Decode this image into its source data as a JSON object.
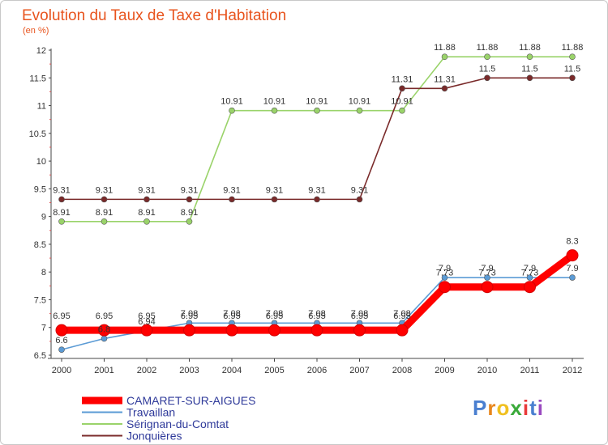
{
  "chart_data": {
    "type": "line",
    "title": "Evolution du Taux de Taxe d'Habitation",
    "subtitle": "(en %)",
    "x": [
      "2000",
      "2001",
      "2002",
      "2003",
      "2004",
      "2005",
      "2006",
      "2007",
      "2008",
      "2009",
      "2010",
      "2011",
      "2012"
    ],
    "ylim": [
      6.5,
      12
    ],
    "yticks": [
      "6.5",
      "7",
      "7.5",
      "8",
      "8.5",
      "9",
      "9.5",
      "10",
      "10.5",
      "11",
      "11.5",
      "12"
    ],
    "grid": false,
    "legend_position": "bottom-left",
    "series": [
      {
        "name": "CAMARET-SUR-AIGUES",
        "color": "#ff0000",
        "values": [
          6.95,
          6.95,
          6.95,
          6.95,
          6.95,
          6.95,
          6.95,
          6.95,
          6.95,
          7.73,
          7.73,
          7.73,
          8.3
        ],
        "labels": [
          "6.95",
          "6.95",
          "6.95",
          "6.95",
          "6.95",
          "6.95",
          "6.95",
          "6.95",
          "6.95",
          "7.73",
          "7.73",
          "7.73",
          "8.3"
        ]
      },
      {
        "name": "Travaillan",
        "color": "#5b9bd5",
        "values": [
          6.6,
          6.8,
          6.94,
          7.08,
          7.08,
          7.08,
          7.08,
          7.08,
          7.08,
          7.9,
          7.9,
          7.9,
          7.9
        ],
        "labels": [
          "6.6",
          "6.8",
          "6.94",
          "7.08",
          "7.08",
          "7.08",
          "7.08",
          "7.08",
          "7.08",
          "7.9",
          "7.9",
          "7.9",
          "7.9"
        ]
      },
      {
        "name": "Sérignan-du-Comtat",
        "color": "#9ad36a",
        "values": [
          8.91,
          8.91,
          8.91,
          8.91,
          10.91,
          10.91,
          10.91,
          10.91,
          10.91,
          11.88,
          11.88,
          11.88,
          11.88
        ],
        "labels": [
          "8.91",
          "8.91",
          "8.91",
          "8.91",
          "10.91",
          "10.91",
          "10.91",
          "10.91",
          "10.91",
          "11.88",
          "11.88",
          "11.88",
          "11.88"
        ]
      },
      {
        "name": "Jonquières",
        "color": "#7a2a2a",
        "values": [
          9.31,
          9.31,
          9.31,
          9.31,
          9.31,
          9.31,
          9.31,
          9.31,
          11.31,
          11.31,
          11.5,
          11.5,
          11.5
        ],
        "labels": [
          "9.31",
          "9.31",
          "9.31",
          "9.31",
          "9.31",
          "9.31",
          "9.31",
          "9.31",
          "11.31",
          "11.31",
          "11.5",
          "11.5",
          "11.5"
        ]
      }
    ]
  },
  "logo": {
    "text": "Proxiti",
    "letters": [
      "P",
      "r",
      "o",
      "x",
      "i",
      "t",
      "i"
    ],
    "colors": [
      "#4a7fd0",
      "#e8871e",
      "#f0c020",
      "#3aaa3a",
      "#e83a3a",
      "#4a7fd0",
      "#9a4ac0"
    ]
  }
}
